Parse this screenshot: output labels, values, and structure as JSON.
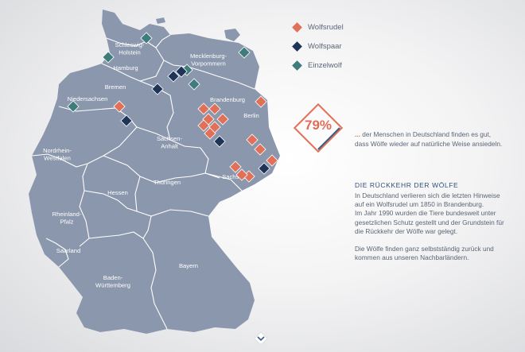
{
  "colors": {
    "wolfsrudel": "#e07058",
    "wolfspaar": "#1f3557",
    "einzelwolf": "#3f7c7c",
    "land": "#8b97ad",
    "border": "#ffffff"
  },
  "map": {
    "states": [
      {
        "name": "Schleswig-\nHolstein"
      },
      {
        "name": "Hamburg"
      },
      {
        "name": "Mecklenburg-\nVorpommern"
      },
      {
        "name": "Bremen"
      },
      {
        "name": "Niedersachsen"
      },
      {
        "name": "Brandenburg"
      },
      {
        "name": "Berlin"
      },
      {
        "name": "Sachsen-\nAnhalt"
      },
      {
        "name": "Nordrhein-\nWestfalen"
      },
      {
        "name": "Hessen"
      },
      {
        "name": "Thüringen"
      },
      {
        "name": "Sachsen"
      },
      {
        "name": "Rheinland-\nPfalz"
      },
      {
        "name": "Saarland"
      },
      {
        "name": "Baden-\nWürttemberg"
      },
      {
        "name": "Bayern"
      }
    ],
    "markers": [
      {
        "type": "einzelwolf"
      },
      {
        "type": "einzelwolf"
      },
      {
        "type": "einzelwolf"
      },
      {
        "type": "einzelwolf"
      },
      {
        "type": "einzelwolf"
      },
      {
        "type": "einzelwolf"
      },
      {
        "type": "wolfspaar"
      },
      {
        "type": "wolfspaar"
      },
      {
        "type": "wolfspaar"
      },
      {
        "type": "wolfspaar"
      },
      {
        "type": "wolfspaar"
      },
      {
        "type": "wolfspaar"
      },
      {
        "type": "wolfsrudel"
      },
      {
        "type": "wolfsrudel"
      },
      {
        "type": "wolfsrudel"
      },
      {
        "type": "wolfsrudel"
      },
      {
        "type": "wolfsrudel"
      },
      {
        "type": "wolfsrudel"
      },
      {
        "type": "wolfsrudel"
      },
      {
        "type": "wolfsrudel"
      },
      {
        "type": "wolfsrudel"
      },
      {
        "type": "wolfsrudel"
      },
      {
        "type": "wolfsrudel"
      },
      {
        "type": "wolfsrudel"
      },
      {
        "type": "wolfsrudel"
      },
      {
        "type": "wolfsrudel"
      },
      {
        "type": "wolfsrudel"
      }
    ]
  },
  "legend": {
    "items": [
      {
        "label": "Wolfsrudel",
        "type": "wolfsrudel"
      },
      {
        "label": "Wolfspaar",
        "type": "wolfspaar"
      },
      {
        "label": "Einzelwolf",
        "type": "einzelwolf"
      }
    ]
  },
  "stat": {
    "value": "79%",
    "ellipsis": "...",
    "text": " der Menschen in Deutschland finden es gut, dass  Wölfe wieder auf natürliche Weise ansiedeln."
  },
  "section": {
    "title": "DIE RÜCKKEHR DER WÖLFE",
    "paragraph1": "In Deutschland verlieren sich die letzten Hinweise auf ein Wolfsrudel um 1850 in Brandenburg.\nIm Jahr 1990 wurden die Tiere bundesweit unter gesetzlichen Schutz gestellt und der Grundstein für die Rückkehr der Wölfe war  gelegt.",
    "paragraph2": "Die Wölfe finden ganz selbstständig zurück und kommen aus unseren Nachbarländern."
  },
  "scroll_icon": "chevron-down-icon"
}
